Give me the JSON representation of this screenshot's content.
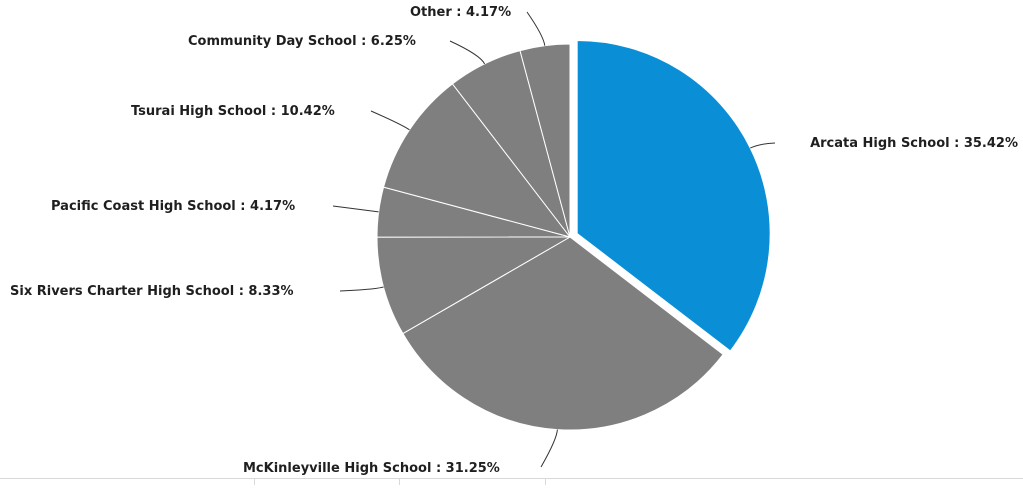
{
  "chart_data": {
    "type": "pie",
    "slices": [
      {
        "label": "Arcata High School : 35.42%",
        "value": 35.42,
        "color": "#0a8fd6",
        "exploded": true
      },
      {
        "label": "McKinleyville High School : 31.25%",
        "value": 31.25,
        "color": "#7f7f7f",
        "exploded": false
      },
      {
        "label": "Six Rivers Charter High School : 8.33%",
        "value": 8.33,
        "color": "#7f7f7f",
        "exploded": false
      },
      {
        "label": "Pacific Coast High School : 4.17%",
        "value": 4.17,
        "color": "#7f7f7f",
        "exploded": false
      },
      {
        "label": "Tsurai High School : 10.42%",
        "value": 10.42,
        "color": "#7f7f7f",
        "exploded": false
      },
      {
        "label": "Community Day School : 6.25%",
        "value": 6.25,
        "color": "#7f7f7f",
        "exploded": false
      },
      {
        "label": "Other : 4.17%",
        "value": 4.17,
        "color": "#7f7f7f",
        "exploded": false
      }
    ]
  }
}
